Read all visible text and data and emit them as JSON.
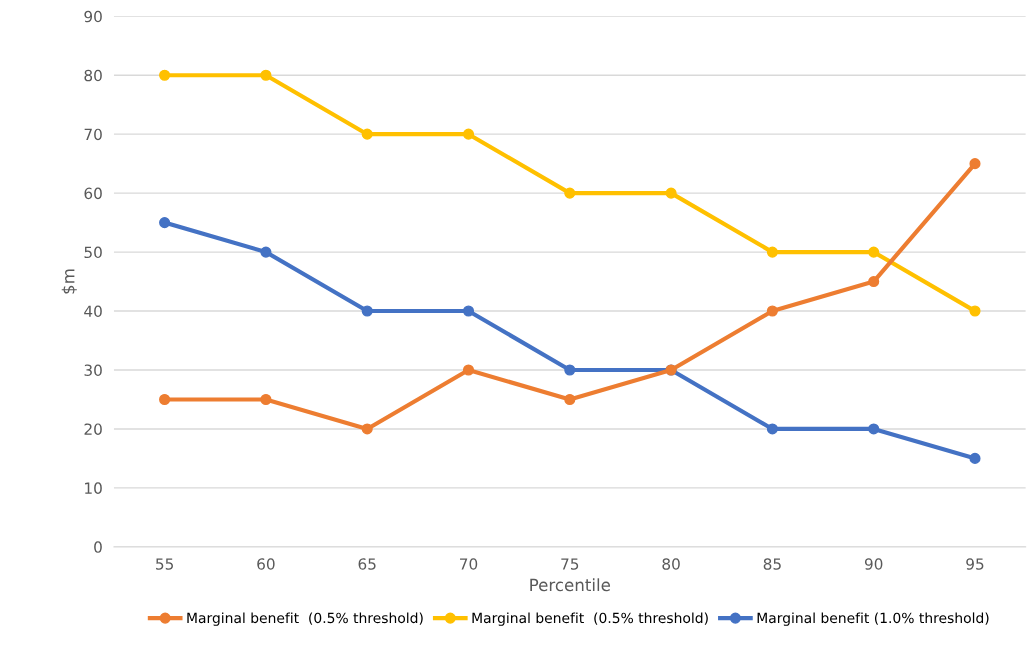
{
  "chart_data": {
    "type": "line",
    "xlabel": "Percentile",
    "ylabel": "$m",
    "categories": [
      "55",
      "60",
      "65",
      "70",
      "75",
      "80",
      "85",
      "90",
      "95"
    ],
    "series": [
      {
        "name": "Marginal benefit  (0.5% threshold)",
        "color": "#ed7d31",
        "values": [
          25,
          25,
          20,
          30,
          25,
          30,
          40,
          45,
          65
        ]
      },
      {
        "name": "Marginal benefit  (0.5% threshold)",
        "color": "#ffc000",
        "values": [
          80,
          80,
          70,
          70,
          60,
          60,
          50,
          50,
          40
        ]
      },
      {
        "name": "Marginal benefit (1.0% threshold)",
        "color": "#4472c4",
        "values": [
          55,
          50,
          40,
          40,
          30,
          30,
          20,
          20,
          15
        ]
      }
    ],
    "ylim": [
      0,
      90
    ],
    "yticks": [
      0,
      10,
      20,
      30,
      40,
      50,
      60,
      70,
      80,
      90
    ],
    "grid": "y",
    "legend": "bottom",
    "marker": "circle",
    "line_style": "solid"
  }
}
